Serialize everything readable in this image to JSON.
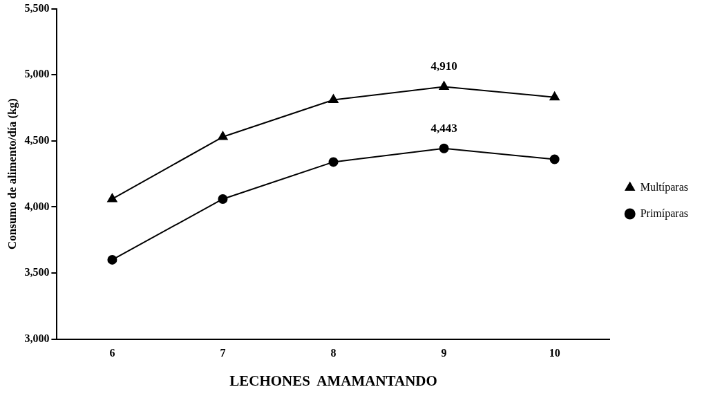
{
  "chart_data": {
    "type": "line",
    "xlabel": "LECHONES  AMAMANTANDO",
    "ylabel": "Consumo de alimento/día (kg)",
    "categories": [
      "6",
      "7",
      "8",
      "9",
      "10"
    ],
    "ylim": [
      3000,
      5500
    ],
    "yticks": [
      {
        "value": 3000,
        "label": "3,000"
      },
      {
        "value": 3500,
        "label": "3,500"
      },
      {
        "value": 4000,
        "label": "4,000"
      },
      {
        "value": 4500,
        "label": "4,500"
      },
      {
        "value": 5000,
        "label": "5,000"
      },
      {
        "value": 5500,
        "label": "5,500"
      }
    ],
    "legend": "right",
    "series": [
      {
        "name": "Multíparas",
        "color": "#000000",
        "marker": "triangle",
        "values": [
          4060,
          4530,
          4810,
          4910,
          4830
        ],
        "value_labels": [
          null,
          null,
          null,
          "4,910",
          null
        ]
      },
      {
        "name": "Primíparas",
        "color": "#000000",
        "marker": "circle",
        "values": [
          3600,
          4060,
          4340,
          4443,
          4360
        ],
        "value_labels": [
          null,
          null,
          null,
          "4,443",
          null
        ]
      }
    ]
  }
}
